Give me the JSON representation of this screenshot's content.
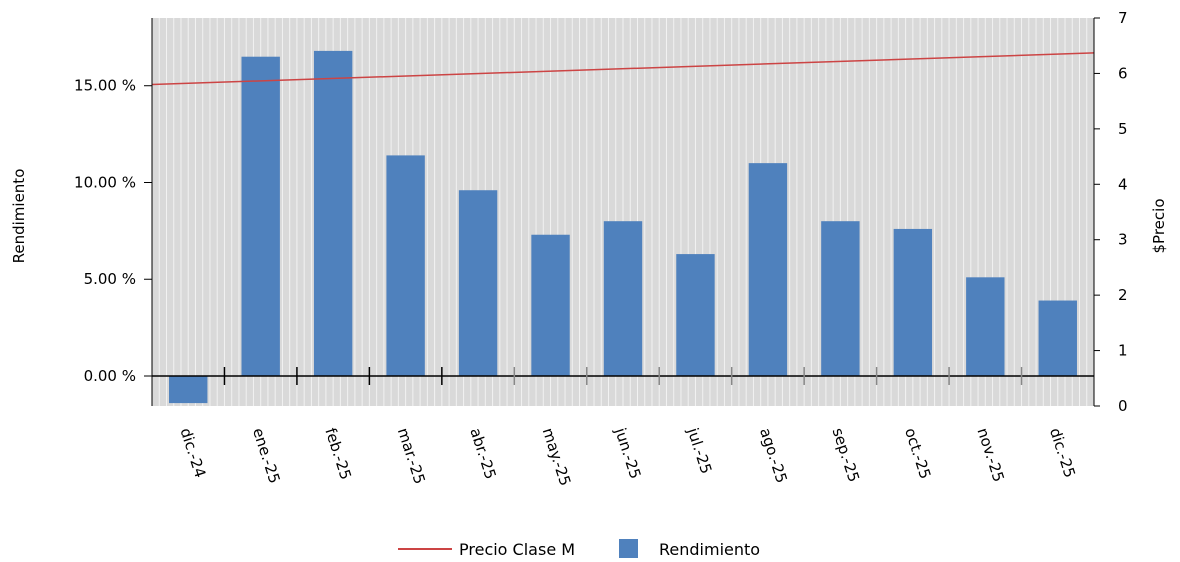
{
  "chart_data": {
    "type": "bar",
    "categories": [
      "dic.-24",
      "ene.-25",
      "feb.-25",
      "mar.-25",
      "abr.-25",
      "may.-25",
      "jun.-25",
      "jul.-25",
      "ago.-25",
      "sep.-25",
      "oct.-25",
      "nov.-25",
      "dic.-25"
    ],
    "series": [
      {
        "name": "Rendimiento",
        "type": "bar",
        "axis": "left",
        "values": [
          -1.4,
          16.5,
          16.8,
          11.4,
          9.6,
          7.3,
          8.0,
          6.3,
          11.0,
          8.0,
          7.6,
          5.1,
          3.9
        ]
      },
      {
        "name": "Precio Clase M",
        "type": "line",
        "axis": "right",
        "x": [
          -0.5,
          12.5
        ],
        "values": [
          5.8,
          6.37
        ]
      }
    ],
    "ylabel_left": "Rendimiento",
    "ylabel_right": "$Precio",
    "ylim_left": [
      -1.55,
      18.5
    ],
    "yticks_left": [
      0,
      5,
      10,
      15
    ],
    "ytick_labels_left": [
      "0.00 %",
      "5.00 %",
      "10.00 %",
      "15.00 %"
    ],
    "ylim_right": [
      0,
      7
    ],
    "yticks_right": [
      0,
      1,
      2,
      3,
      4,
      5,
      6,
      7
    ],
    "ytick_labels_right": [
      "0",
      "1",
      "2",
      "3",
      "4",
      "5",
      "6",
      "7"
    ],
    "grid": true,
    "legend_position": "bottom",
    "colors": {
      "bar": "#4f81bd",
      "line": "#cc4444",
      "plot_bg": "#d9d9d9",
      "grid": "#f2f2f2"
    }
  }
}
